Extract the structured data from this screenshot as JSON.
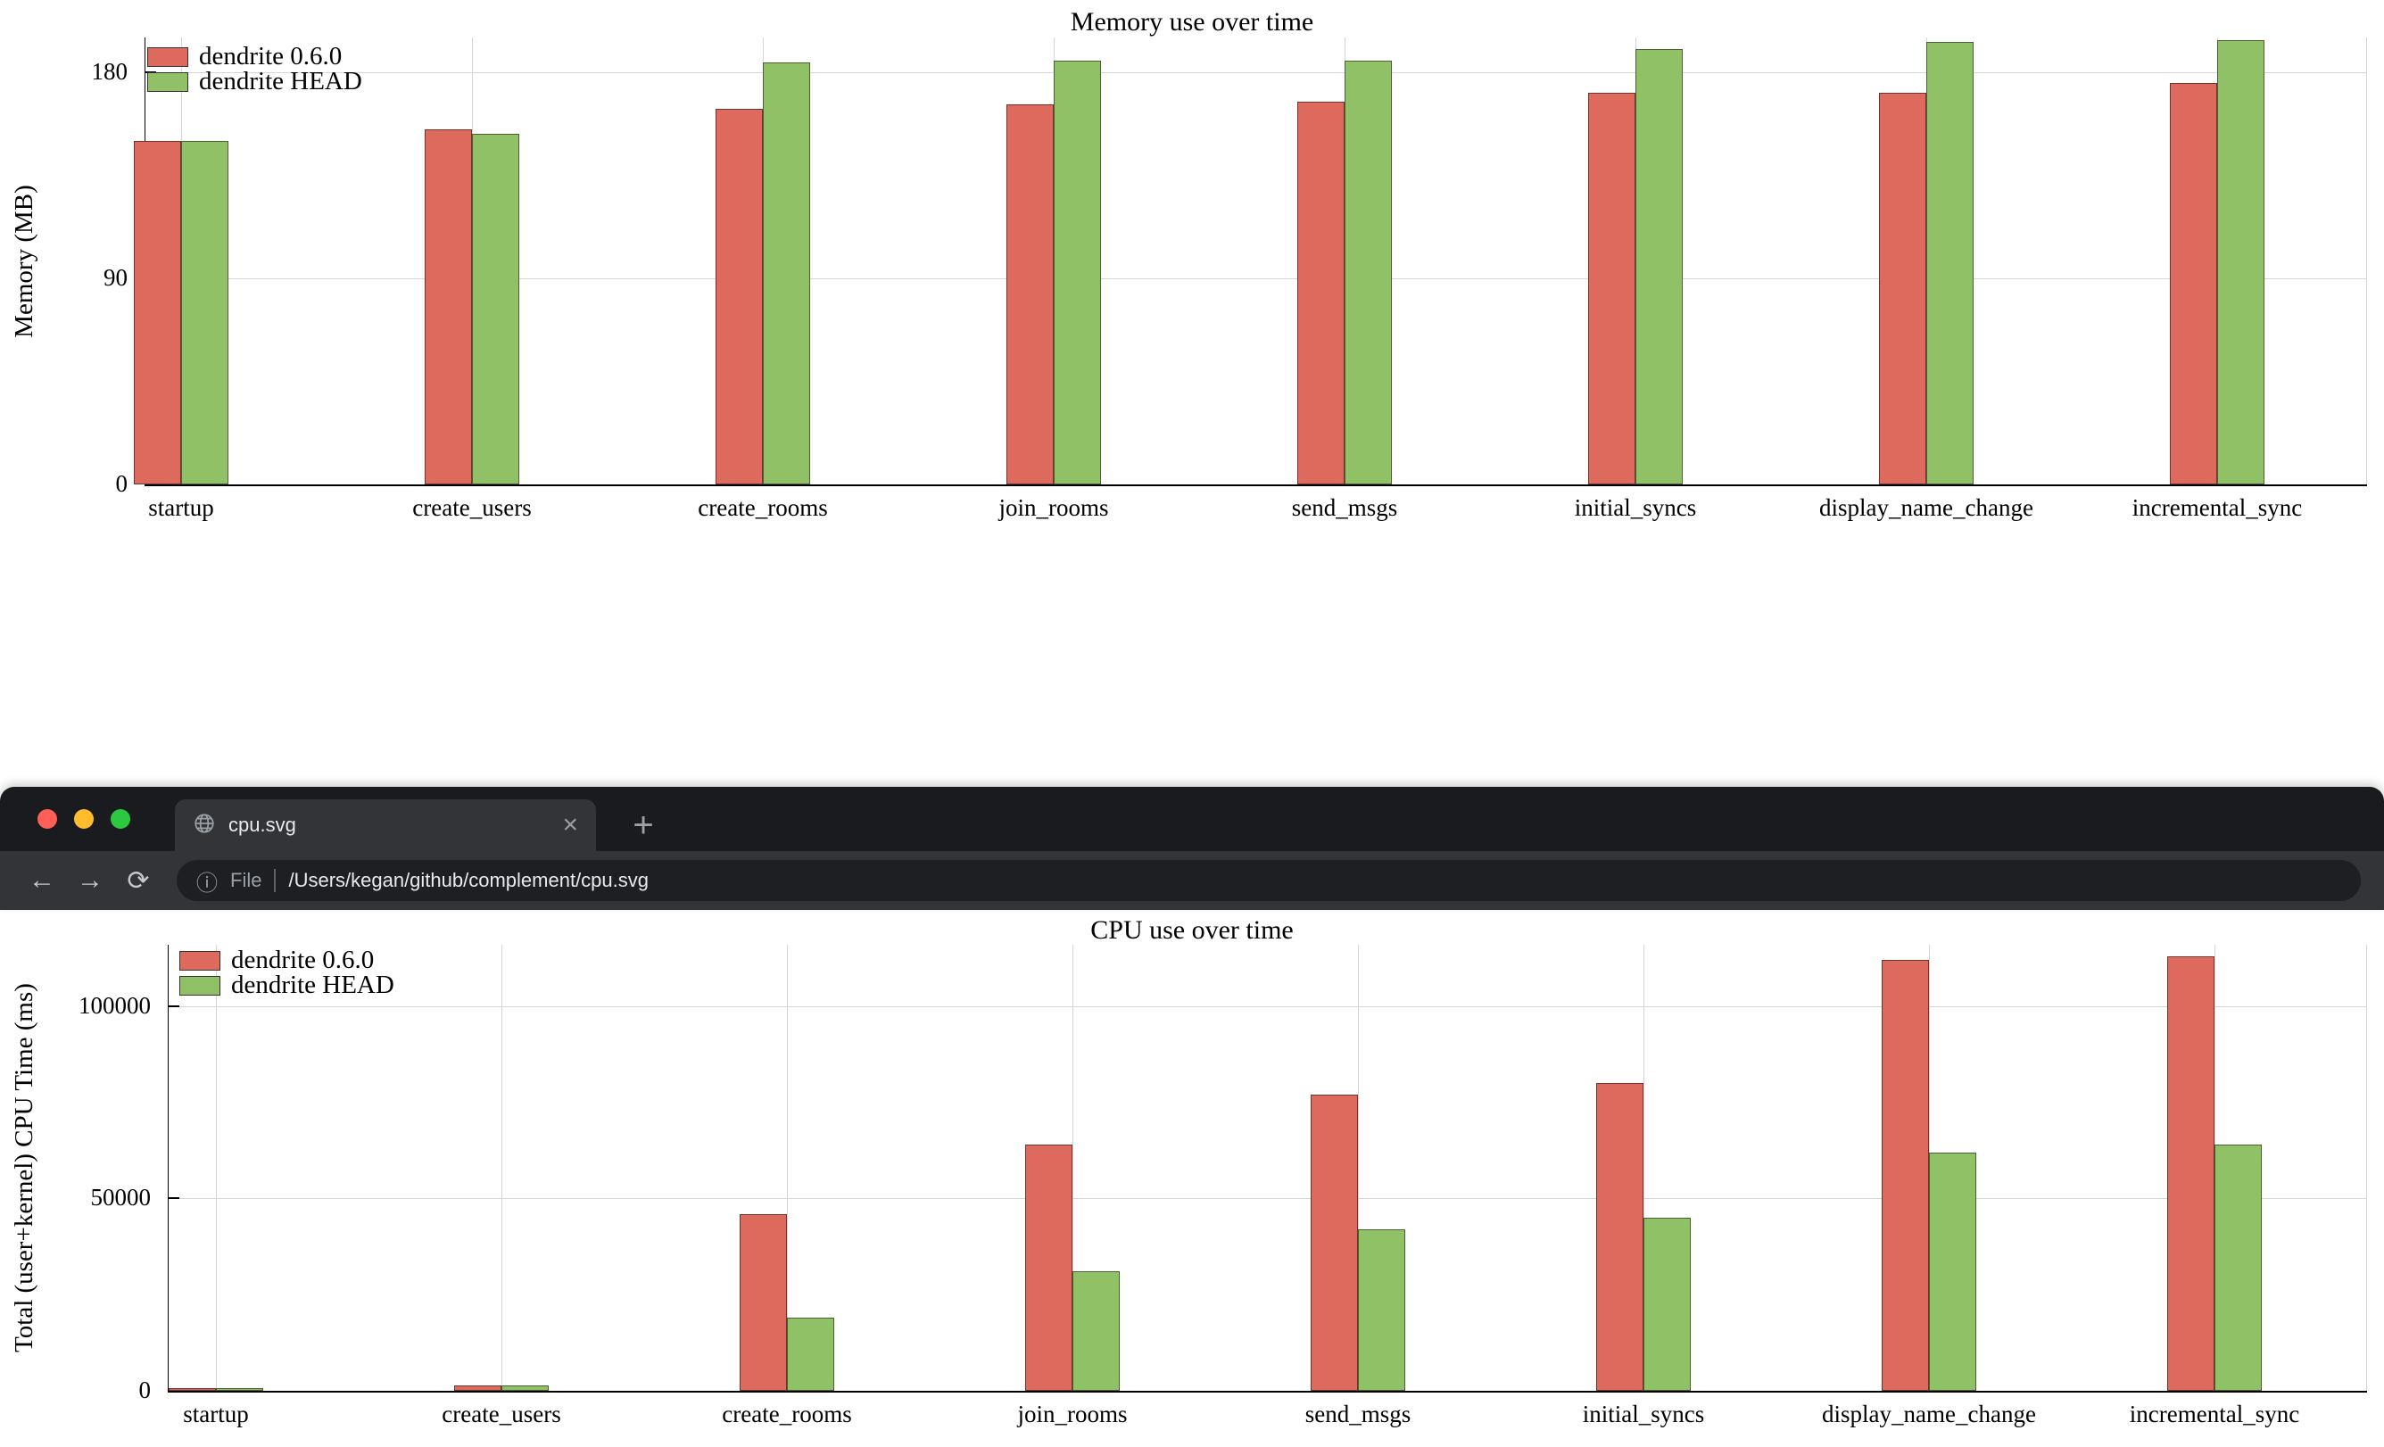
{
  "browser": {
    "window_controls": [
      "close",
      "minimize",
      "zoom"
    ],
    "tab": {
      "icon": "globe-icon",
      "title": "cpu.svg",
      "close_icon": "×"
    },
    "new_tab_icon": "+",
    "nav": {
      "back_icon": "←",
      "forward_icon": "→",
      "reload_icon": "⟳"
    },
    "omnibox": {
      "info_icon": "ⓘ",
      "scheme": "File",
      "path": "/Users/kegan/github/complement/cpu.svg"
    }
  },
  "chart_data": [
    {
      "type": "bar",
      "title": "Memory use over time",
      "xlabel": "",
      "ylabel": "Memory (MB)",
      "categories": [
        "startup",
        "create_users",
        "create_rooms",
        "join_rooms",
        "send_msgs",
        "initial_syncs",
        "display_name_change",
        "incremental_sync"
      ],
      "series": [
        {
          "name": "dendrite 0.6.0",
          "color": "#dd6a5d",
          "values": [
            150,
            155,
            164,
            166,
            167,
            171,
            171,
            175
          ]
        },
        {
          "name": "dendrite HEAD",
          "color": "#90c167",
          "values": [
            150,
            153,
            184,
            185,
            185,
            190,
            193,
            194
          ]
        }
      ],
      "yticks": [
        0,
        90,
        180
      ],
      "ylim": [
        0,
        195
      ],
      "grid": true,
      "legend_position": "top-left"
    },
    {
      "type": "bar",
      "title": "CPU use over time",
      "xlabel": "",
      "ylabel": "Total (user+kernel) CPU Time (ms)",
      "categories": [
        "startup",
        "create_users",
        "create_rooms",
        "join_rooms",
        "send_msgs",
        "initial_syncs",
        "display_name_change",
        "incremental_sync"
      ],
      "series": [
        {
          "name": "dendrite 0.6.0",
          "color": "#dd6a5d",
          "values": [
            800,
            1500,
            46000,
            64000,
            77000,
            80000,
            112000,
            113000
          ]
        },
        {
          "name": "dendrite HEAD",
          "color": "#90c167",
          "values": [
            800,
            1500,
            19000,
            31000,
            42000,
            45000,
            62000,
            64000
          ]
        }
      ],
      "yticks": [
        0,
        50000,
        100000
      ],
      "ylim": [
        0,
        116000
      ],
      "grid": true,
      "legend_position": "top-left"
    }
  ]
}
